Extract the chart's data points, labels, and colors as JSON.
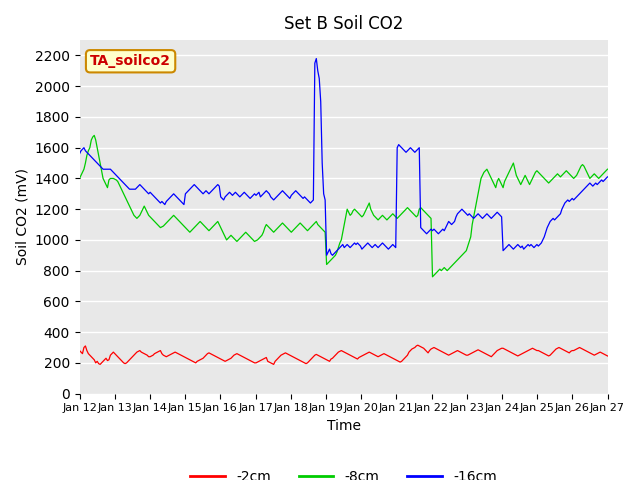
{
  "title": "Set B Soil CO2",
  "ylabel": "Soil CO2 (mV)",
  "xlabel": "Time",
  "annotation": "TA_soilco2",
  "ylim": [
    0,
    2300
  ],
  "yticks": [
    0,
    200,
    400,
    600,
    800,
    1000,
    1200,
    1400,
    1600,
    1800,
    2000,
    2200
  ],
  "colors": {
    "red": "#ff0000",
    "green": "#00cc00",
    "blue": "#0000ff"
  },
  "legend_labels": [
    "-2cm",
    "-8cm",
    "-16cm"
  ],
  "xtick_labels": [
    "Jan 12",
    "Jan 13",
    "Jan 14",
    "Jan 15",
    "Jan 16",
    "Jan 17",
    "Jan 18",
    "Jan 19",
    "Jan 20",
    "Jan 21",
    "Jan 22",
    "Jan 23",
    "Jan 24",
    "Jan 25",
    "Jan 26",
    "Jan 27"
  ],
  "num_days": 15,
  "points_per_day": 24,
  "red_data": [
    280,
    270,
    260,
    300,
    310,
    280,
    260,
    250,
    240,
    230,
    220,
    200,
    210,
    195,
    190,
    200,
    210,
    220,
    230,
    215,
    220,
    250,
    260,
    270,
    260,
    250,
    240,
    230,
    220,
    210,
    200,
    195,
    200,
    210,
    220,
    230,
    240,
    250,
    260,
    270,
    275,
    280,
    270,
    265,
    260,
    255,
    250,
    240,
    240,
    245,
    250,
    260,
    265,
    270,
    275,
    280,
    260,
    250,
    245,
    240,
    245,
    250,
    255,
    260,
    265,
    270,
    265,
    260,
    255,
    250,
    245,
    240,
    235,
    230,
    225,
    220,
    215,
    210,
    205,
    200,
    210,
    215,
    220,
    225,
    230,
    240,
    250,
    260,
    265,
    260,
    255,
    250,
    245,
    240,
    235,
    230,
    225,
    220,
    215,
    210,
    215,
    220,
    225,
    230,
    240,
    250,
    255,
    260,
    255,
    250,
    245,
    240,
    235,
    230,
    225,
    220,
    215,
    210,
    205,
    200,
    200,
    205,
    210,
    215,
    220,
    225,
    230,
    235,
    210,
    205,
    200,
    195,
    190,
    210,
    220,
    230,
    240,
    250,
    255,
    260,
    265,
    260,
    255,
    250,
    245,
    240,
    235,
    230,
    225,
    220,
    215,
    210,
    205,
    200,
    195,
    200,
    210,
    220,
    230,
    240,
    250,
    255,
    250,
    245,
    240,
    235,
    230,
    225,
    220,
    215,
    210,
    225,
    230,
    240,
    250,
    260,
    270,
    275,
    280,
    275,
    270,
    265,
    260,
    255,
    250,
    245,
    240,
    235,
    230,
    225,
    235,
    240,
    245,
    250,
    255,
    260,
    265,
    270,
    265,
    260,
    255,
    250,
    245,
    240,
    245,
    250,
    255,
    260,
    255,
    250,
    245,
    240,
    235,
    230,
    225,
    220,
    215,
    210,
    205,
    210,
    220,
    230,
    240,
    250,
    270,
    280,
    290,
    295,
    300,
    310,
    315,
    310,
    305,
    300,
    295,
    285,
    275,
    265,
    280,
    290,
    295,
    300,
    295,
    290,
    285,
    280,
    275,
    270,
    265,
    260,
    255,
    250,
    255,
    260,
    265,
    270,
    275,
    280,
    275,
    270,
    265,
    260,
    255,
    250,
    250,
    255,
    260,
    265,
    270,
    275,
    280,
    285,
    280,
    275,
    270,
    265,
    260,
    255,
    250,
    245,
    240,
    250,
    260,
    270,
    280,
    285,
    290,
    295,
    295,
    290,
    285,
    280,
    275,
    270,
    265,
    260,
    255,
    250,
    245,
    250,
    255,
    260,
    265,
    270,
    275,
    280,
    285,
    290,
    295,
    290,
    285,
    280,
    280,
    275,
    270,
    265,
    260,
    255,
    250,
    245,
    250,
    260,
    270,
    280,
    290,
    295,
    300,
    295,
    290,
    285,
    280,
    275,
    270,
    265,
    275,
    280,
    280,
    285,
    290,
    295,
    300,
    295,
    290,
    285,
    280,
    275,
    270,
    265,
    260,
    255,
    250,
    255,
    260,
    265,
    270,
    265,
    260,
    255,
    250,
    245
  ],
  "green_data": [
    1400,
    1420,
    1440,
    1460,
    1500,
    1550,
    1580,
    1600,
    1650,
    1670,
    1680,
    1650,
    1600,
    1550,
    1500,
    1450,
    1400,
    1380,
    1360,
    1340,
    1390,
    1400,
    1400,
    1400,
    1395,
    1390,
    1380,
    1360,
    1340,
    1320,
    1300,
    1280,
    1260,
    1240,
    1220,
    1200,
    1180,
    1160,
    1150,
    1140,
    1150,
    1160,
    1180,
    1200,
    1220,
    1200,
    1180,
    1160,
    1150,
    1140,
    1130,
    1120,
    1110,
    1100,
    1090,
    1080,
    1085,
    1090,
    1100,
    1110,
    1120,
    1130,
    1140,
    1150,
    1160,
    1150,
    1140,
    1130,
    1120,
    1110,
    1100,
    1090,
    1080,
    1070,
    1060,
    1050,
    1060,
    1070,
    1080,
    1090,
    1100,
    1110,
    1120,
    1110,
    1100,
    1090,
    1080,
    1070,
    1060,
    1070,
    1080,
    1090,
    1100,
    1110,
    1120,
    1100,
    1080,
    1060,
    1040,
    1020,
    1000,
    1010,
    1020,
    1030,
    1020,
    1010,
    1000,
    990,
    1000,
    1010,
    1020,
    1030,
    1040,
    1050,
    1040,
    1030,
    1020,
    1010,
    1000,
    990,
    995,
    1000,
    1010,
    1020,
    1030,
    1050,
    1080,
    1100,
    1090,
    1080,
    1070,
    1060,
    1050,
    1060,
    1070,
    1080,
    1090,
    1100,
    1110,
    1100,
    1090,
    1080,
    1070,
    1060,
    1050,
    1060,
    1070,
    1080,
    1090,
    1100,
    1110,
    1100,
    1090,
    1080,
    1070,
    1060,
    1070,
    1080,
    1090,
    1100,
    1110,
    1120,
    1100,
    1090,
    1080,
    1070,
    1060,
    1050,
    840,
    850,
    860,
    870,
    880,
    890,
    900,
    920,
    950,
    980,
    1000,
    1050,
    1100,
    1150,
    1200,
    1180,
    1160,
    1170,
    1190,
    1200,
    1190,
    1180,
    1170,
    1160,
    1150,
    1160,
    1180,
    1200,
    1220,
    1240,
    1200,
    1180,
    1160,
    1150,
    1140,
    1130,
    1140,
    1150,
    1160,
    1150,
    1140,
    1130,
    1140,
    1150,
    1160,
    1170,
    1160,
    1150,
    1140,
    1150,
    1160,
    1170,
    1180,
    1190,
    1200,
    1210,
    1200,
    1190,
    1180,
    1170,
    1160,
    1150,
    1160,
    1200,
    1210,
    1200,
    1190,
    1180,
    1170,
    1160,
    1150,
    1140,
    760,
    770,
    780,
    790,
    800,
    810,
    800,
    810,
    820,
    810,
    800,
    810,
    820,
    830,
    840,
    850,
    860,
    870,
    880,
    890,
    900,
    910,
    920,
    930,
    960,
    990,
    1020,
    1100,
    1150,
    1200,
    1250,
    1300,
    1350,
    1400,
    1420,
    1440,
    1450,
    1460,
    1440,
    1420,
    1400,
    1380,
    1360,
    1340,
    1380,
    1400,
    1380,
    1360,
    1340,
    1380,
    1400,
    1420,
    1440,
    1460,
    1480,
    1500,
    1460,
    1420,
    1400,
    1380,
    1360,
    1380,
    1400,
    1420,
    1400,
    1380,
    1360,
    1380,
    1400,
    1420,
    1440,
    1450,
    1440,
    1430,
    1420,
    1410,
    1400,
    1390,
    1380,
    1370,
    1380,
    1390,
    1400,
    1410,
    1420,
    1430,
    1420,
    1410,
    1420,
    1430,
    1440,
    1450,
    1440,
    1430,
    1420,
    1410,
    1400,
    1410,
    1420,
    1440,
    1460,
    1480,
    1490,
    1480,
    1460,
    1440,
    1420,
    1400,
    1410,
    1420,
    1430,
    1420,
    1410,
    1400,
    1410,
    1420,
    1430,
    1440,
    1450,
    1460
  ],
  "blue_data": [
    1560,
    1580,
    1590,
    1600,
    1580,
    1570,
    1560,
    1550,
    1540,
    1530,
    1520,
    1510,
    1500,
    1490,
    1480,
    1470,
    1460,
    1460,
    1460,
    1460,
    1460,
    1460,
    1450,
    1440,
    1430,
    1420,
    1410,
    1400,
    1390,
    1380,
    1370,
    1360,
    1350,
    1340,
    1330,
    1330,
    1330,
    1330,
    1330,
    1340,
    1350,
    1360,
    1350,
    1340,
    1330,
    1320,
    1310,
    1300,
    1310,
    1300,
    1290,
    1280,
    1270,
    1260,
    1250,
    1240,
    1250,
    1240,
    1230,
    1250,
    1260,
    1270,
    1280,
    1290,
    1300,
    1290,
    1280,
    1270,
    1260,
    1250,
    1240,
    1230,
    1300,
    1310,
    1320,
    1330,
    1340,
    1350,
    1360,
    1350,
    1340,
    1330,
    1320,
    1310,
    1300,
    1310,
    1320,
    1310,
    1300,
    1310,
    1320,
    1330,
    1340,
    1350,
    1360,
    1350,
    1280,
    1270,
    1260,
    1280,
    1290,
    1300,
    1310,
    1300,
    1290,
    1300,
    1310,
    1300,
    1290,
    1280,
    1290,
    1300,
    1310,
    1300,
    1290,
    1280,
    1270,
    1280,
    1290,
    1300,
    1290,
    1300,
    1310,
    1280,
    1290,
    1300,
    1310,
    1320,
    1310,
    1300,
    1280,
    1270,
    1260,
    1270,
    1280,
    1290,
    1300,
    1310,
    1320,
    1310,
    1300,
    1290,
    1280,
    1270,
    1290,
    1300,
    1310,
    1320,
    1310,
    1300,
    1290,
    1280,
    1270,
    1280,
    1270,
    1260,
    1250,
    1240,
    1250,
    1260,
    2150,
    2180,
    2100,
    2050,
    1900,
    1500,
    1300,
    1260,
    900,
    920,
    940,
    910,
    900,
    910,
    920,
    930,
    940,
    950,
    960,
    970,
    950,
    960,
    970,
    960,
    950,
    960,
    970,
    980,
    970,
    980,
    970,
    960,
    940,
    950,
    960,
    970,
    980,
    970,
    960,
    950,
    960,
    970,
    960,
    950,
    960,
    970,
    980,
    970,
    960,
    950,
    940,
    950,
    960,
    970,
    960,
    950,
    1600,
    1620,
    1610,
    1600,
    1590,
    1580,
    1570,
    1580,
    1590,
    1600,
    1590,
    1580,
    1570,
    1580,
    1590,
    1600,
    1080,
    1070,
    1060,
    1050,
    1040,
    1050,
    1060,
    1070,
    1060,
    1070,
    1060,
    1050,
    1040,
    1050,
    1060,
    1070,
    1060,
    1080,
    1100,
    1120,
    1110,
    1100,
    1110,
    1120,
    1150,
    1170,
    1180,
    1190,
    1200,
    1190,
    1180,
    1170,
    1160,
    1170,
    1160,
    1150,
    1140,
    1150,
    1160,
    1170,
    1160,
    1150,
    1140,
    1150,
    1160,
    1170,
    1160,
    1150,
    1140,
    1150,
    1160,
    1170,
    1180,
    1170,
    1160,
    1150,
    930,
    940,
    950,
    960,
    970,
    960,
    950,
    940,
    950,
    960,
    970,
    960,
    950,
    960,
    940,
    950,
    960,
    970,
    960,
    970,
    960,
    950,
    960,
    970,
    960,
    970,
    980,
    1000,
    1020,
    1050,
    1080,
    1100,
    1120,
    1130,
    1140,
    1130,
    1140,
    1150,
    1160,
    1170,
    1200,
    1220,
    1240,
    1250,
    1260,
    1250,
    1260,
    1270,
    1260,
    1270,
    1280,
    1290,
    1300,
    1310,
    1320,
    1330,
    1340,
    1350,
    1360,
    1370,
    1360,
    1350,
    1360,
    1370,
    1360,
    1370,
    1380,
    1390,
    1380,
    1390,
    1400,
    1410
  ]
}
